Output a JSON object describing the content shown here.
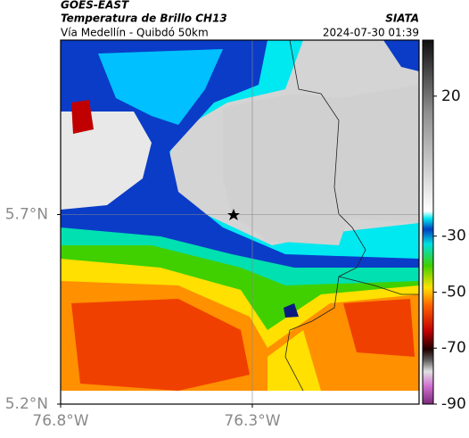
{
  "header": {
    "title": "GOES-EAST",
    "subtitle": "Temperatura de Brillo CH13",
    "source": "SIATA",
    "region": "Vía Medellín - Quibdó 50km",
    "timestamp": "2024-07-30 01:39"
  },
  "map": {
    "xlim": [
      -76.8,
      -75.865
    ],
    "ylim": [
      5.2,
      6.16
    ],
    "xticks": [
      {
        "value": -76.8,
        "label": "76.8°W"
      },
      {
        "value": -76.3,
        "label": "76.3°W"
      }
    ],
    "yticks": [
      {
        "value": 5.2,
        "label": "5.2°N"
      },
      {
        "value": 5.7,
        "label": "5.7°N"
      }
    ]
  },
  "colorbar": {
    "lim": [
      -90,
      40
    ],
    "ticks": [
      20,
      -30,
      -50,
      -70,
      -90
    ]
  }
}
